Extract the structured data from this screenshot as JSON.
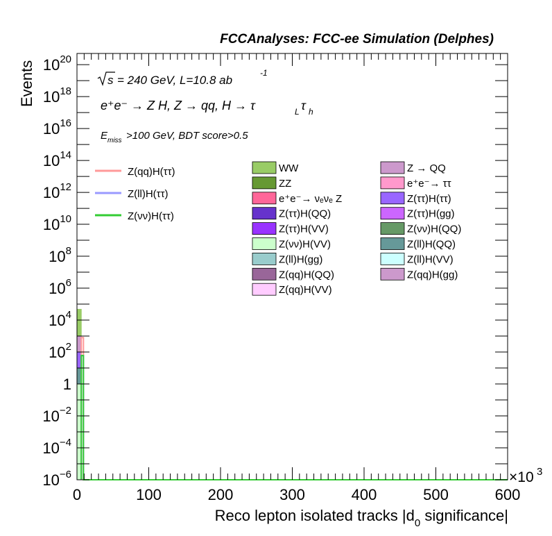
{
  "header": {
    "title": "FCCAnalyses: FCC-ee Simulation (Delphes)"
  },
  "annotations": {
    "sqrt_s": "s",
    "energy_lumi": "= 240 GeV, L=10.8 ab",
    "lumi_exp": "-1",
    "process": "e⁺e⁻ → Z H, Z → qq, H → τ",
    "tau_l": "L",
    "tau_sym": "τ",
    "tau_h": "h",
    "cut_E": "E",
    "cut_miss": "miss",
    "cut_rest": ">100 GeV, BDT score>0.5"
  },
  "chart_data": {
    "type": "histogram",
    "title": "FCCAnalyses: FCC-ee Simulation (Delphes)",
    "xlabel": "Reco lepton isolated tracks |d",
    "xlabel_sub": "0",
    "xlabel_end": " significance|",
    "ylabel": "Events",
    "x_multiplier": "×10",
    "x_multiplier_exp": "3",
    "xlim": [
      0,
      600
    ],
    "ylim_log10": [
      -6,
      20.7
    ],
    "log_y": true,
    "x_ticks": [
      0,
      100,
      200,
      300,
      400,
      500,
      600
    ],
    "x_tick_labels": [
      "0",
      "100",
      "200",
      "300",
      "400",
      "500",
      "600"
    ],
    "y_ticks_log10": [
      -6,
      -4,
      -2,
      0,
      2,
      4,
      6,
      8,
      10,
      12,
      14,
      16,
      18,
      20
    ],
    "y_tick_labels": [
      {
        "base": "10",
        "exp": "−6"
      },
      {
        "base": "10",
        "exp": "−4"
      },
      {
        "base": "10",
        "exp": "−2"
      },
      {
        "base": "1",
        "exp": ""
      },
      {
        "base": "10",
        "exp": "2"
      },
      {
        "base": "10",
        "exp": "4"
      },
      {
        "base": "10",
        "exp": "6"
      },
      {
        "base": "10",
        "exp": "8"
      },
      {
        "base": "10",
        "exp": "10"
      },
      {
        "base": "10",
        "exp": "12"
      },
      {
        "base": "10",
        "exp": "14"
      },
      {
        "base": "10",
        "exp": "16"
      },
      {
        "base": "10",
        "exp": "18"
      },
      {
        "base": "10",
        "exp": "20"
      }
    ],
    "background_stack_first_bin": {
      "x_range": [
        0,
        6
      ],
      "components": [
        {
          "name": "WW",
          "color": "#99cc66",
          "top": 50000
        },
        {
          "name": "Z(qq)H(gg)",
          "color": "#cc99cc",
          "top": 1000
        },
        {
          "name": "Z(ττ)H(ττ)",
          "color": "#9966ff",
          "top": 100
        },
        {
          "name": "Z(ll)H(QQ)",
          "color": "#669999",
          "top": 10
        },
        {
          "name": "Z(νν)H(VV)",
          "color": "#ccffcc",
          "top": 1
        }
      ]
    },
    "signal_lines": [
      {
        "name": "Z(qq)H(ττ)",
        "color": "#ff9999",
        "bin_x": [
          6,
          9
        ],
        "value": 800
      },
      {
        "name": "Z(ll)H(ττ)",
        "color": "#9999ff",
        "bin_x": [
          6,
          9
        ],
        "value": 60
      },
      {
        "name": "Z(νν)H(ττ)",
        "color": "#33cc33",
        "bin_x": [
          6,
          9
        ],
        "value": 60
      }
    ],
    "legend_signals": [
      {
        "label": "Z(qq)H(ττ)",
        "color": "#ff9999"
      },
      {
        "label": "Z(ll)H(ττ)",
        "color": "#9999ff"
      },
      {
        "label": "Z(νν)H(ττ)",
        "color": "#33cc33"
      }
    ],
    "legend_backgrounds_col1": [
      {
        "label": "WW",
        "color": "#99cc66"
      },
      {
        "label": "ZZ",
        "color": "#669933"
      },
      {
        "label": "e⁺e⁻→ νₑνₑ Z",
        "color": "#ff6699"
      },
      {
        "label": "Z(ττ)H(QQ)",
        "color": "#6633cc"
      },
      {
        "label": "Z(ττ)H(VV)",
        "color": "#9933ff"
      },
      {
        "label": "Z(νν)H(VV)",
        "color": "#ccffcc"
      },
      {
        "label": "Z(ll)H(gg)",
        "color": "#99cccc"
      },
      {
        "label": "Z(qq)H(QQ)",
        "color": "#996699"
      },
      {
        "label": "Z(qq)H(VV)",
        "color": "#ffccff"
      }
    ],
    "legend_backgrounds_col2": [
      {
        "label": "Z → QQ",
        "color": "#cc99cc"
      },
      {
        "label": "e⁺e⁻→ ττ",
        "color": "#ff99cc"
      },
      {
        "label": "Z(ττ)H(ττ)",
        "color": "#9966ff"
      },
      {
        "label": "Z(ττ)H(gg)",
        "color": "#cc66ff"
      },
      {
        "label": "Z(νν)H(QQ)",
        "color": "#669966"
      },
      {
        "label": "Z(ll)H(QQ)",
        "color": "#669999"
      },
      {
        "label": "Z(ll)H(VV)",
        "color": "#ccffff"
      },
      {
        "label": "Z(qq)H(gg)",
        "color": "#cc99cc"
      }
    ]
  }
}
